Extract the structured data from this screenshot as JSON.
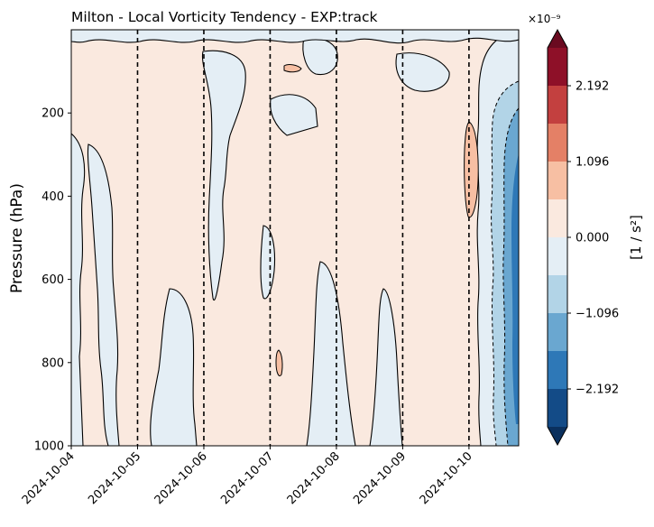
{
  "chart_data": {
    "type": "heatmap",
    "title": "Milton - Local Vorticity Tendency - EXP:track",
    "ylabel": "Pressure (hPa)",
    "y_inverted": true,
    "ylim": [
      1000,
      0
    ],
    "y_ticks": [
      200,
      400,
      600,
      800,
      1000
    ],
    "x_ticks": [
      "2024-10-04",
      "2024-10-05",
      "2024-10-06",
      "2024-10-07",
      "2024-10-08",
      "2024-10-09",
      "2024-10-10"
    ],
    "xlim": [
      "2024-10-04",
      "2024-10-10T18:00"
    ],
    "vertical_dashed_lines": [
      "2024-10-05",
      "2024-10-06",
      "2024-10-07",
      "2024-10-08",
      "2024-10-09",
      "2024-10-10"
    ],
    "colorbar": {
      "label": "[1 / s²]",
      "multiplier": "×10⁻⁹",
      "ticks": [
        2.192,
        1.096,
        0.0,
        -1.096,
        -2.192
      ],
      "tick_labels": [
        "2.192",
        "1.096",
        "0.000",
        "−1.096",
        "−2.192"
      ],
      "levels": [
        -2.74,
        -2.192,
        -1.644,
        -1.096,
        -0.548,
        0.0,
        0.548,
        1.096,
        1.644,
        2.192,
        2.74
      ],
      "colors": [
        "#134b87",
        "#2e78b7",
        "#6aa7d0",
        "#b2d4e7",
        "#e4eef5",
        "#fae9df",
        "#f7bfa3",
        "#e48066",
        "#c3403f",
        "#8e1028"
      ],
      "extend": "both",
      "under_color": "#0a305e",
      "over_color": "#6a0a20"
    },
    "regions": [
      {
        "desc": "dominant weakly positive background",
        "value": 0.3
      },
      {
        "desc": "weakly negative vertical streaks",
        "value": -0.3
      },
      {
        "desc": "strong negative core",
        "date": "2024-10-10T16:00",
        "pressure_range": [
          150,
          980
        ],
        "value": -2.5
      },
      {
        "desc": "positive maximum",
        "date": "2024-10-09T23:00",
        "pressure_range": [
          230,
          450
        ],
        "value": 1.2
      },
      {
        "desc": "small positive patch",
        "date": "2024-10-07T03:00",
        "pressure_range": [
          775,
          830
        ],
        "value": 1.0
      },
      {
        "desc": "small positive patch",
        "date": "2024-10-07T09:00",
        "pressure_range": [
          85,
          100
        ],
        "value": 0.9
      }
    ]
  }
}
